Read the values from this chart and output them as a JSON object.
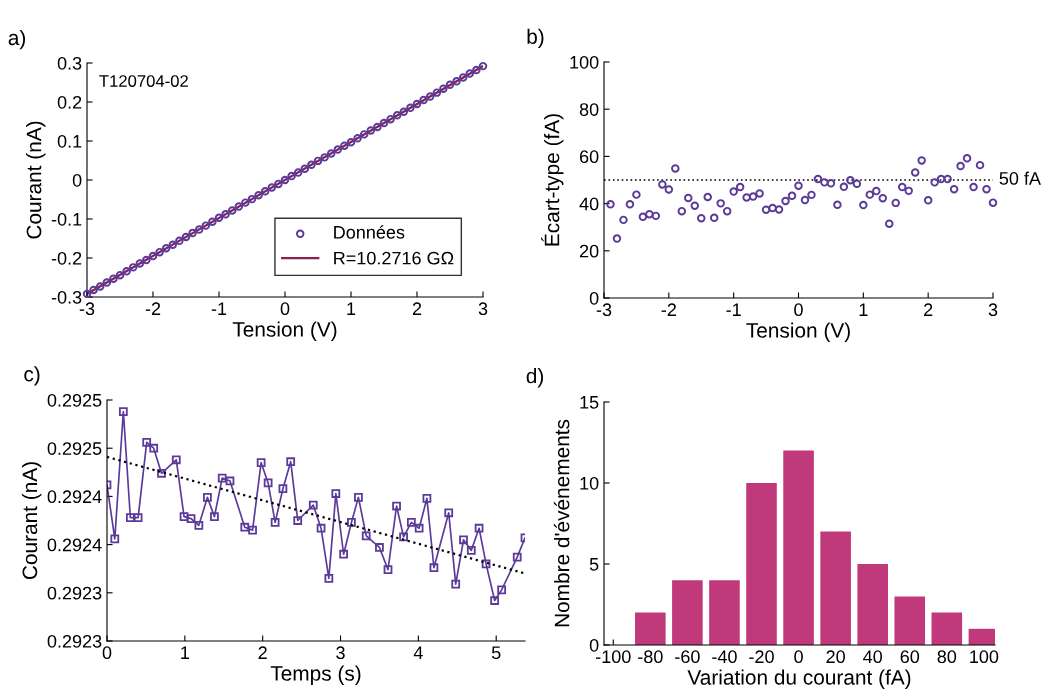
{
  "chart_data": [
    {
      "type": "scatter",
      "title": "a)",
      "xlabel": "Tension (V)",
      "ylabel": "Courant (nA)",
      "annotations": [
        "T120704-02"
      ],
      "legend": "bottom right",
      "xlim": [
        -3,
        3
      ],
      "xticks": [
        -3,
        -2,
        -1,
        0,
        1,
        2,
        3
      ],
      "ylim": [
        -0.3,
        0.3
      ],
      "yticks": [
        -0.3,
        -0.2,
        -0.1,
        0,
        0.1,
        0.2,
        0.3
      ],
      "x": [
        -3.0,
        -2.9,
        -2.8,
        -2.7,
        -2.6,
        -2.5,
        -2.4,
        -2.3,
        -2.2,
        -2.1,
        -2.0,
        -1.9,
        -1.8,
        -1.7,
        -1.6,
        -1.5,
        -1.4,
        -1.3,
        -1.2,
        -1.1,
        -1.0,
        -0.9,
        -0.8,
        -0.7,
        -0.6,
        -0.5,
        -0.4,
        -0.3,
        -0.2,
        -0.1,
        0.0,
        0.1,
        0.2,
        0.3,
        0.4,
        0.5,
        0.6,
        0.7,
        0.8,
        0.9,
        1.0,
        1.1,
        1.2,
        1.3,
        1.4,
        1.5,
        1.6,
        1.7,
        1.8,
        1.9,
        2.0,
        2.1,
        2.2,
        2.3,
        2.4,
        2.5,
        2.6,
        2.7,
        2.8,
        2.9,
        3.0
      ],
      "series": [
        {
          "name": "Données",
          "type": "scatter",
          "marker": "circle",
          "color": "#5b3a9a",
          "values": [
            -0.292,
            -0.282,
            -0.273,
            -0.263,
            -0.253,
            -0.244,
            -0.234,
            -0.224,
            -0.214,
            -0.205,
            -0.195,
            -0.185,
            -0.175,
            -0.166,
            -0.156,
            -0.146,
            -0.136,
            -0.127,
            -0.117,
            -0.107,
            -0.097,
            -0.088,
            -0.078,
            -0.068,
            -0.058,
            -0.049,
            -0.039,
            -0.029,
            -0.019,
            -0.01,
            0,
            0.01,
            0.019,
            0.029,
            0.039,
            0.049,
            0.058,
            0.068,
            0.078,
            0.088,
            0.097,
            0.107,
            0.117,
            0.127,
            0.136,
            0.146,
            0.156,
            0.166,
            0.175,
            0.185,
            0.195,
            0.205,
            0.214,
            0.224,
            0.234,
            0.244,
            0.253,
            0.263,
            0.273,
            0.282,
            0.292
          ]
        },
        {
          "name": "R=10.2716 GΩ",
          "type": "line",
          "marker": "none",
          "line_style": "solid",
          "color": "#8b2050",
          "x": [
            -3,
            3
          ],
          "values": [
            -0.292,
            0.292
          ]
        }
      ]
    },
    {
      "type": "scatter",
      "title": "b)",
      "xlabel": "Tension (V)",
      "ylabel": "Écart-type (fA)",
      "marker": "circle",
      "xlim": [
        -3,
        3
      ],
      "xticks": [
        -3,
        -2,
        -1,
        0,
        1,
        2,
        3
      ],
      "ylim": [
        0,
        100
      ],
      "yticks": [
        0,
        20,
        40,
        60,
        80,
        100
      ],
      "ref_lines": [
        {
          "axis": "y",
          "value": 50,
          "label": "50 fA",
          "color": "#000000",
          "line_style": "dotted"
        }
      ],
      "x": [
        -2.9,
        -2.8,
        -2.7,
        -2.6,
        -2.5,
        -2.4,
        -2.3,
        -2.2,
        -2.1,
        -2.0,
        -1.9,
        -1.8,
        -1.7,
        -1.6,
        -1.5,
        -1.4,
        -1.3,
        -1.2,
        -1.1,
        -1.0,
        -0.9,
        -0.8,
        -0.7,
        -0.6,
        -0.5,
        -0.4,
        -0.3,
        -0.2,
        -0.1,
        0.0,
        0.1,
        0.2,
        0.3,
        0.4,
        0.5,
        0.6,
        0.7,
        0.8,
        0.9,
        1.0,
        1.1,
        1.2,
        1.3,
        1.4,
        1.5,
        1.6,
        1.7,
        1.8,
        1.9,
        2.0,
        2.1,
        2.2,
        2.3,
        2.4,
        2.5,
        2.6,
        2.7,
        2.8,
        2.9,
        3.0
      ],
      "series": [
        {
          "color": "#5b3a9a",
          "values": [
            39.7,
            25.2,
            33.1,
            39.7,
            43.8,
            34.4,
            35.5,
            34.8,
            48.1,
            46.0,
            54.9,
            36.8,
            42.4,
            39.1,
            33.8,
            42.8,
            34.0,
            40.1,
            36.8,
            45.1,
            47.0,
            42.6,
            43.0,
            44.3,
            37.4,
            38.1,
            37.5,
            41.1,
            43.3,
            47.6,
            41.5,
            43.7,
            50.4,
            49.0,
            48.6,
            39.5,
            47.1,
            49.9,
            48.4,
            39.4,
            43.8,
            45.3,
            42.3,
            31.5,
            40.3,
            47.0,
            45.4,
            53.2,
            58.3,
            41.4,
            49.0,
            50.4,
            50.4,
            46.1,
            55.9,
            59.2,
            47.0,
            56.3,
            46.1,
            40.4
          ]
        }
      ]
    },
    {
      "type": "line",
      "title": "c)",
      "xlabel": "Temps (s)",
      "ylabel": "Courant (nA)",
      "xlim": [
        0,
        5.37
      ],
      "xticks": [
        0,
        1,
        2,
        3,
        4,
        5
      ],
      "ylim": [
        0.29225,
        0.2925
      ],
      "yticks": [
        {
          "value": 0.29225,
          "label": "0.2923"
        },
        {
          "value": 0.2923,
          "label": "0.2923"
        },
        {
          "value": 0.29235,
          "label": "0.2924"
        },
        {
          "value": 0.2924,
          "label": "0.2924"
        },
        {
          "value": 0.29245,
          "label": "0.2925"
        },
        {
          "value": 0.2925,
          "label": "0.2925"
        }
      ],
      "series": [
        {
          "type": "line",
          "marker": "square",
          "line_style": "solid",
          "color": "#5b3a9a",
          "x": [
            0,
            0.1,
            0.21,
            0.3,
            0.4,
            0.51,
            0.6,
            0.7,
            0.89,
            0.99,
            1.08,
            1.18,
            1.29,
            1.38,
            1.48,
            1.58,
            1.77,
            1.87,
            1.98,
            2.07,
            2.16,
            2.26,
            2.36,
            2.45,
            2.65,
            2.75,
            2.85,
            2.94,
            3.04,
            3.14,
            3.23,
            3.33,
            3.5,
            3.61,
            3.72,
            3.81,
            3.91,
            4.01,
            4.11,
            4.2,
            4.39,
            4.48,
            4.58,
            4.68,
            4.78,
            4.87,
            4.98,
            5.07,
            5.27,
            5.37
          ],
          "values": [
            0.292412,
            0.292356,
            0.292488,
            0.292378,
            0.292378,
            0.292456,
            0.29245,
            0.292424,
            0.292438,
            0.292379,
            0.292377,
            0.29237,
            0.292399,
            0.292379,
            0.292419,
            0.292416,
            0.292368,
            0.292365,
            0.292435,
            0.292414,
            0.292373,
            0.292408,
            0.292436,
            0.292375,
            0.292391,
            0.292367,
            0.292315,
            0.292403,
            0.29234,
            0.292373,
            0.292399,
            0.292359,
            0.292347,
            0.292324,
            0.29239,
            0.292358,
            0.292373,
            0.292367,
            0.292398,
            0.292326,
            0.292383,
            0.292309,
            0.292355,
            0.292344,
            0.292367,
            0.29233,
            0.292292,
            0.292303,
            0.292337,
            0.292357
          ]
        },
        {
          "type": "line",
          "marker": "none",
          "line_style": "dotted",
          "color": "#000000",
          "x": [
            0,
            5.37
          ],
          "values": [
            0.292441,
            0.29232
          ]
        }
      ]
    },
    {
      "type": "bar",
      "title": "d)",
      "xlabel": "Variation du courant (fA)",
      "ylabel": "Nombre d'événements",
      "xlim": [
        -105,
        106
      ],
      "xticks": [
        -100,
        -80,
        -60,
        -40,
        -20,
        0,
        20,
        40,
        60,
        80,
        100
      ],
      "ylim": [
        0,
        15
      ],
      "yticks": [
        0,
        5,
        10,
        15
      ],
      "x": [
        -80,
        -60,
        -40,
        -20,
        0,
        20,
        40,
        60,
        80,
        100
      ],
      "series": [
        {
          "color": "#c0397a",
          "values": [
            2,
            4,
            4,
            10,
            12,
            7,
            5,
            3,
            2,
            1
          ]
        }
      ]
    }
  ]
}
